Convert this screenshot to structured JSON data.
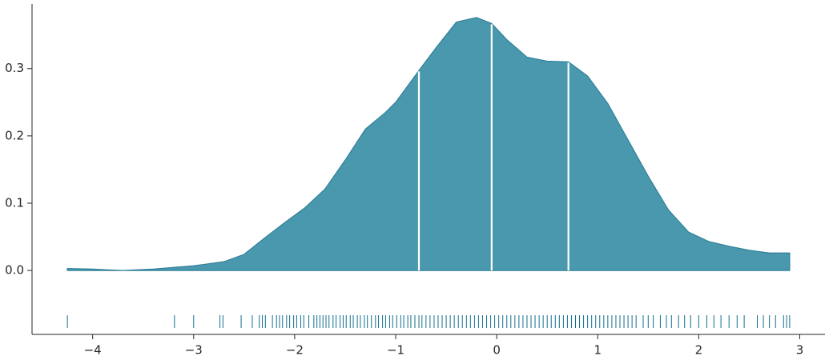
{
  "chart_data": {
    "type": "density",
    "x": [
      -4.25,
      -4.0,
      -3.7,
      -3.4,
      -3.0,
      -2.7,
      -2.5,
      -2.3,
      -2.1,
      -1.9,
      -1.7,
      -1.5,
      -1.3,
      -1.1,
      -1.0,
      -0.77,
      -0.6,
      -0.4,
      -0.2,
      -0.05,
      0.1,
      0.3,
      0.5,
      0.71,
      0.9,
      1.1,
      1.3,
      1.5,
      1.7,
      1.9,
      2.1,
      2.3,
      2.5,
      2.7,
      2.9
    ],
    "values": [
      0.003,
      0.002,
      0.0,
      0.002,
      0.007,
      0.013,
      0.024,
      0.048,
      0.071,
      0.093,
      0.121,
      0.164,
      0.21,
      0.235,
      0.25,
      0.297,
      0.331,
      0.369,
      0.376,
      0.367,
      0.343,
      0.317,
      0.311,
      0.31,
      0.289,
      0.248,
      0.194,
      0.14,
      0.09,
      0.057,
      0.043,
      0.036,
      0.03,
      0.026,
      0.026
    ],
    "quartiles": [
      -0.77,
      -0.05,
      0.71
    ],
    "rug": [
      -4.25,
      -3.19,
      -3.0,
      -2.74,
      -2.71,
      -2.53,
      -2.42,
      -2.35,
      -2.32,
      -2.29,
      -2.22,
      -2.18,
      -2.15,
      -2.12,
      -2.08,
      -2.05,
      -2.01,
      -1.98,
      -1.94,
      -1.91,
      -1.86,
      -1.81,
      -1.78,
      -1.75,
      -1.72,
      -1.69,
      -1.66,
      -1.62,
      -1.59,
      -1.55,
      -1.52,
      -1.49,
      -1.45,
      -1.42,
      -1.38,
      -1.35,
      -1.31,
      -1.28,
      -1.24,
      -1.2,
      -1.17,
      -1.13,
      -1.1,
      -1.06,
      -1.03,
      -0.99,
      -0.95,
      -0.92,
      -0.88,
      -0.85,
      -0.81,
      -0.77,
      -0.74,
      -0.7,
      -0.66,
      -0.62,
      -0.58,
      -0.54,
      -0.5,
      -0.46,
      -0.42,
      -0.38,
      -0.34,
      -0.3,
      -0.26,
      -0.22,
      -0.18,
      -0.14,
      -0.1,
      -0.06,
      -0.02,
      0.02,
      0.06,
      0.1,
      0.14,
      0.18,
      0.22,
      0.26,
      0.3,
      0.34,
      0.38,
      0.42,
      0.46,
      0.5,
      0.54,
      0.58,
      0.62,
      0.66,
      0.7,
      0.74,
      0.78,
      0.82,
      0.86,
      0.9,
      0.94,
      0.98,
      1.02,
      1.06,
      1.1,
      1.14,
      1.18,
      1.22,
      1.26,
      1.3,
      1.34,
      1.38,
      1.45,
      1.5,
      1.55,
      1.62,
      1.68,
      1.73,
      1.8,
      1.86,
      1.92,
      2.0,
      2.08,
      2.15,
      2.22,
      2.3,
      2.38,
      2.45,
      2.58,
      2.64,
      2.7,
      2.76,
      2.84,
      2.87,
      2.9
    ],
    "color": "#4a98ae",
    "line_color": "#2f8199",
    "rug_color": "#136f8f",
    "xlim": [
      -4.6,
      3.25
    ],
    "ylim": [
      -0.095,
      0.396
    ],
    "xticks": [
      {
        "value": -4,
        "label": "−4"
      },
      {
        "value": -3,
        "label": "−3"
      },
      {
        "value": -2,
        "label": "−2"
      },
      {
        "value": -1,
        "label": "−1"
      },
      0,
      1,
      2,
      3
    ],
    "yticks": [
      {
        "value": 0,
        "label": "0.0"
      },
      0.1,
      0.2,
      0.3
    ]
  }
}
